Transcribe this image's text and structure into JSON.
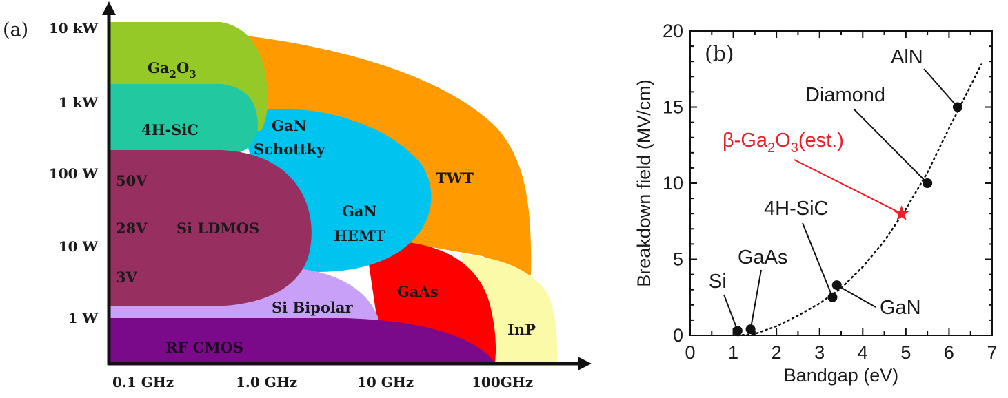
{
  "chart_data": [
    {
      "panel_label": "(a)",
      "type": "diagram",
      "x_tick_labels": [
        "0.1 GHz",
        "1.0 GHz",
        "10 GHz",
        "100GHz"
      ],
      "y_tick_labels": [
        "10 kW",
        "1 kW",
        "100 W",
        "10 W",
        "1 W"
      ],
      "regions": [
        {
          "label": "Ga",
          "sub": "2",
          "label2": "O",
          "sub2": "3",
          "color": "#95c927"
        },
        {
          "label": "4H-SiC",
          "color": "#22c9a0"
        },
        {
          "label": "GaN",
          "label_line2": "Schottky",
          "color": "#00c4f0"
        },
        {
          "label": "TWT",
          "color": "#ff9a00"
        },
        {
          "label": "GaN",
          "label_line2": "HEMT",
          "color": "#00c4f0"
        },
        {
          "label": "Si LDMOS",
          "color": "#973060"
        },
        {
          "label": "50V",
          "color": "#973060"
        },
        {
          "label": "28V",
          "color": "#973060"
        },
        {
          "label": "3V",
          "color": "#973060"
        },
        {
          "label": "Si Bipolar",
          "color": "#c9a0f8"
        },
        {
          "label": "GaAs",
          "color": "#ff0000"
        },
        {
          "label": "InP",
          "color": "#fbfaa8"
        },
        {
          "label": "RF CMOS",
          "color": "#7a0a8a"
        }
      ]
    },
    {
      "panel_label": "(b)",
      "type": "scatter",
      "xlabel": "Bandgap (eV)",
      "ylabel": "Breakdown field (MV/cm)",
      "xlim": [
        0,
        7
      ],
      "ylim": [
        0,
        20
      ],
      "x_ticks": [
        0,
        1,
        2,
        3,
        4,
        5,
        6,
        7
      ],
      "y_ticks": [
        0,
        5,
        10,
        15,
        20
      ],
      "points": [
        {
          "name": "Si",
          "x": 1.1,
          "y": 0.3
        },
        {
          "name": "GaAs",
          "x": 1.4,
          "y": 0.4
        },
        {
          "name": "4H-SiC",
          "x": 3.3,
          "y": 2.5
        },
        {
          "name": "GaN",
          "x": 3.4,
          "y": 3.3
        },
        {
          "name": "Diamond",
          "x": 5.5,
          "y": 10
        },
        {
          "name": "AlN",
          "x": 6.2,
          "y": 15
        }
      ],
      "highlight": {
        "name": "β-Ga",
        "sub": "2",
        "name2": "O",
        "sub2": "3",
        "name3": "(est.)",
        "x": 4.9,
        "y": 8,
        "color": "#e8202a"
      },
      "trend": {
        "style": "dotted",
        "x": [
          1.1,
          1.5,
          2,
          2.5,
          3,
          3.5,
          4,
          4.5,
          5,
          5.5,
          6,
          6.5,
          6.75
        ],
        "y": [
          0.0,
          0.1,
          0.6,
          1.3,
          2.1,
          3.1,
          4.5,
          6.2,
          8.3,
          10.7,
          13.6,
          16.4,
          17.8
        ]
      }
    }
  ]
}
